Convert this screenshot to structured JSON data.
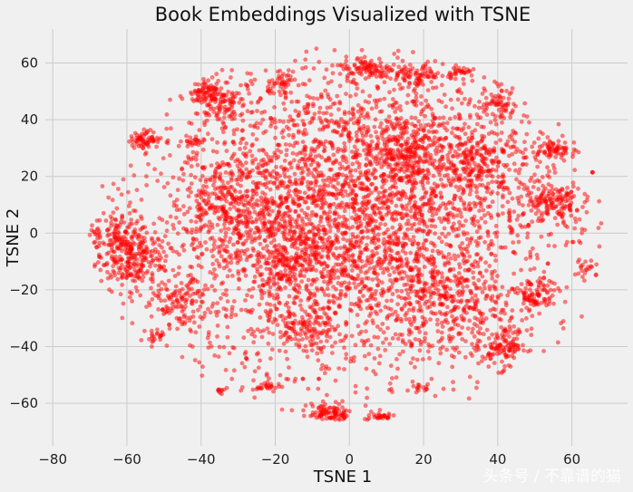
{
  "chart_data": {
    "type": "scatter",
    "title": "Book Embeddings Visualized with TSNE",
    "xlabel": "TSNE 1",
    "ylabel": "TSNE 2",
    "xlim": [
      -82,
      75
    ],
    "ylim": [
      -75,
      72
    ],
    "xticks": [
      -80,
      -60,
      -40,
      -20,
      0,
      20,
      40,
      60
    ],
    "yticks": [
      -60,
      -40,
      -20,
      0,
      20,
      40,
      60
    ],
    "xtick_labels": [
      "−80",
      "−60",
      "−40",
      "−20",
      "0",
      "20",
      "40",
      "60"
    ],
    "ytick_labels": [
      "−60",
      "−40",
      "−20",
      "0",
      "20",
      "40",
      "60"
    ],
    "grid": true,
    "point_color": "#ff0000",
    "point_alpha": 0.5,
    "clusters": [
      {
        "x": 0,
        "y": 5,
        "sx": 30,
        "sy": 30,
        "n": 2600
      },
      {
        "x": 5,
        "y": 10,
        "sx": 22,
        "sy": 24,
        "n": 1200
      },
      {
        "x": -60,
        "y": -10,
        "sx": 5,
        "sy": 5,
        "n": 220
      },
      {
        "x": -62,
        "y": 0,
        "sx": 4,
        "sy": 4,
        "n": 120
      },
      {
        "x": -55,
        "y": 33,
        "sx": 2,
        "sy": 1.5,
        "n": 60
      },
      {
        "x": -38,
        "y": 50,
        "sx": 2.5,
        "sy": 2,
        "n": 80
      },
      {
        "x": -35,
        "y": 45,
        "sx": 2.5,
        "sy": 2.5,
        "n": 70
      },
      {
        "x": 5,
        "y": 58,
        "sx": 4,
        "sy": 2,
        "n": 90
      },
      {
        "x": 18,
        "y": 55,
        "sx": 3,
        "sy": 2,
        "n": 60
      },
      {
        "x": 30,
        "y": 57,
        "sx": 2,
        "sy": 1,
        "n": 30
      },
      {
        "x": -18,
        "y": 52,
        "sx": 2,
        "sy": 2,
        "n": 40
      },
      {
        "x": 55,
        "y": 10,
        "sx": 4,
        "sy": 4,
        "n": 140
      },
      {
        "x": 55,
        "y": 30,
        "sx": 3,
        "sy": 1.5,
        "n": 70
      },
      {
        "x": 42,
        "y": -40,
        "sx": 3,
        "sy": 3,
        "n": 110
      },
      {
        "x": 50,
        "y": -22,
        "sx": 3,
        "sy": 3,
        "n": 90
      },
      {
        "x": -5,
        "y": -64,
        "sx": 3,
        "sy": 2,
        "n": 110
      },
      {
        "x": 8,
        "y": -65,
        "sx": 2,
        "sy": 1,
        "n": 40
      },
      {
        "x": -22,
        "y": -54,
        "sx": 1.5,
        "sy": 1,
        "n": 25
      },
      {
        "x": -13,
        "y": -34,
        "sx": 4,
        "sy": 4,
        "n": 100
      },
      {
        "x": -45,
        "y": -25,
        "sx": 4,
        "sy": 4,
        "n": 110
      },
      {
        "x": -30,
        "y": 10,
        "sx": 8,
        "sy": 8,
        "n": 300
      },
      {
        "x": 25,
        "y": -25,
        "sx": 8,
        "sy": 8,
        "n": 250
      },
      {
        "x": 35,
        "y": 25,
        "sx": 6,
        "sy": 6,
        "n": 180
      },
      {
        "x": 15,
        "y": 30,
        "sx": 6,
        "sy": 6,
        "n": 200
      },
      {
        "x": -15,
        "y": -10,
        "sx": 6,
        "sy": 6,
        "n": 200
      },
      {
        "x": 40,
        "y": 45,
        "sx": 3,
        "sy": 3,
        "n": 60
      },
      {
        "x": -52,
        "y": -37,
        "sx": 1.5,
        "sy": 1.5,
        "n": 20
      },
      {
        "x": -42,
        "y": 32,
        "sx": 1.5,
        "sy": 1,
        "n": 20
      },
      {
        "x": 63,
        "y": -12,
        "sx": 1,
        "sy": 1.5,
        "n": 15
      },
      {
        "x": -74,
        "y": 0,
        "sx": 0.6,
        "sy": 0.6,
        "n": 6
      },
      {
        "x": 66,
        "y": 21,
        "sx": 0.6,
        "sy": 0.6,
        "n": 6
      },
      {
        "x": -35,
        "y": -56,
        "sx": 1,
        "sy": 1,
        "n": 12
      },
      {
        "x": 20,
        "y": -55,
        "sx": 1.5,
        "sy": 1,
        "n": 15
      }
    ]
  },
  "watermark": "头条号 / 不靠谱的猫"
}
